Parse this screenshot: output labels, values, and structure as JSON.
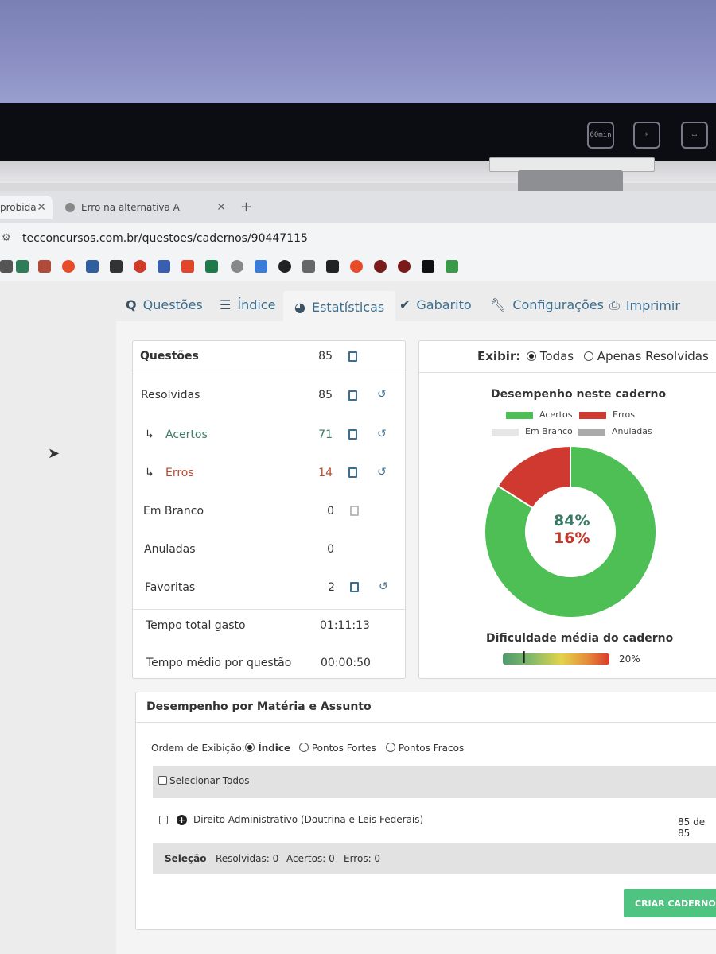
{
  "browser": {
    "tab_first_label": "probida",
    "tab_second_label": "Erro na alternativa A",
    "url": "tecconcursos.com.br/questoes/cadernos/90447115"
  },
  "bezel_icons": [
    "60min",
    "",
    ""
  ],
  "nav_tabs": [
    {
      "label": "Questões",
      "icon": "q-icon"
    },
    {
      "label": "Índice",
      "icon": "list-icon"
    },
    {
      "label": "Estatísticas",
      "icon": "pie-icon"
    },
    {
      "label": "Gabarito",
      "icon": "check-icon"
    },
    {
      "label": "Configurações",
      "icon": "wrench-icon"
    },
    {
      "label": "Imprimir",
      "icon": "print-icon"
    }
  ],
  "stats": {
    "header_label": "Questões",
    "header_value": "85",
    "rows": [
      {
        "label": "Resolvidas",
        "value": "85"
      },
      {
        "label": "Acertos",
        "value": "71"
      },
      {
        "label": "Erros",
        "value": "14"
      },
      {
        "label": "Em Branco",
        "value": "0"
      },
      {
        "label": "Anuladas",
        "value": "0"
      },
      {
        "label": "Favoritas",
        "value": "2"
      }
    ],
    "arrow": "↳",
    "time_total_label": "Tempo total gasto",
    "time_total_value": "01:11:13",
    "time_avg_label": "Tempo médio por questão",
    "time_avg_value": "00:00:50"
  },
  "exibir": {
    "label": "Exibir:",
    "option_all": "Todas",
    "option_resolved": "Apenas Resolvidas"
  },
  "chart_data": {
    "type": "pie",
    "title": "Desempenho neste caderno",
    "series": [
      {
        "name": "Acertos",
        "value": 84,
        "color": "#4dbf55"
      },
      {
        "name": "Erros",
        "value": 16,
        "color": "#d0392f"
      },
      {
        "name": "Em Branco",
        "value": 0,
        "color": "#e6e6e6"
      },
      {
        "name": "Anuladas",
        "value": 0,
        "color": "#aaaaaa"
      }
    ],
    "center_labels": [
      "84%",
      "16%"
    ],
    "legend_position": "top"
  },
  "difficulty": {
    "title": "Dificuldade média do caderno",
    "value_label": "20%",
    "value": 0.2
  },
  "materia": {
    "title": "Desempenho por Matéria e Assunto",
    "order_label": "Ordem de Exibição:",
    "order_options": [
      "Índice",
      "Pontos Fortes",
      "Pontos Fracos"
    ],
    "select_all": "Selecionar Todos",
    "subject": "Direito Administrativo (Doutrina e Leis Federais)",
    "subject_count": "85 de 85",
    "selection_label": "Seleção",
    "selection_resolved": "Resolvidas: 0",
    "selection_correct": "Acertos: 0",
    "selection_errors": "Erros: 0",
    "create_button": "CRIAR CADERNO C"
  }
}
